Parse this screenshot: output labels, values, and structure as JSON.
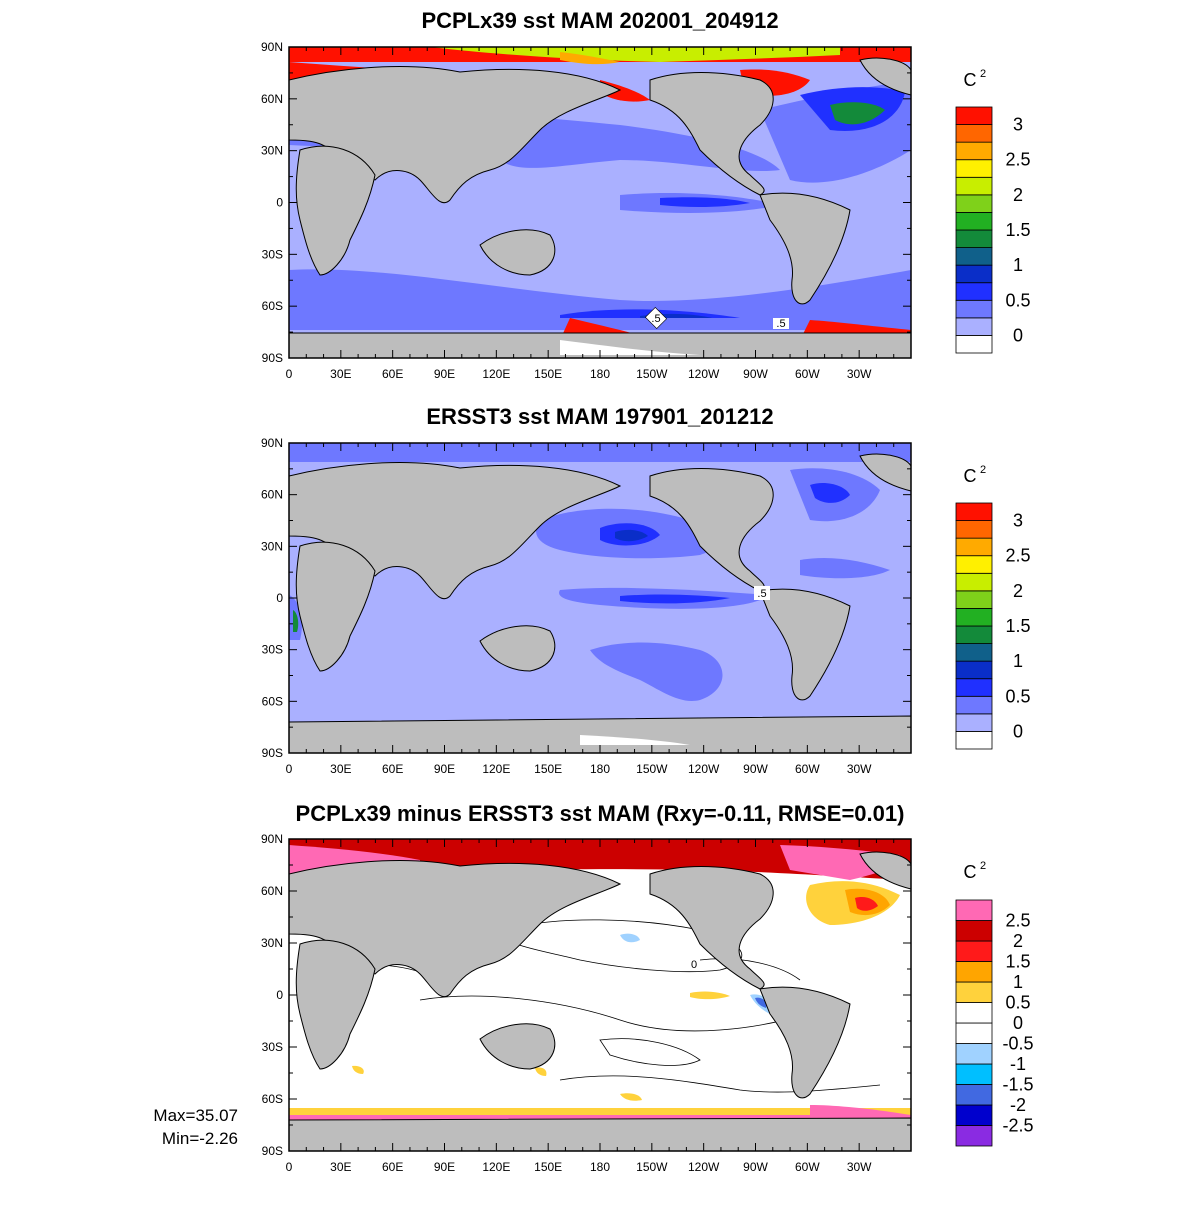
{
  "panels": [
    {
      "title": "PCPLx39 sst MAM 202001_204912",
      "lat_labels": [
        "90N",
        "60N",
        "30N",
        "0",
        "30S",
        "60S",
        "90S"
      ],
      "lon_labels": [
        "0",
        "30E",
        "60E",
        "90E",
        "120E",
        "150E",
        "180",
        "150W",
        "120W",
        "90W",
        "60W",
        "30W"
      ],
      "colorbar": {
        "unit": "C",
        "unit_sup": "2",
        "colors": [
          "#ffffff",
          "#aab0ff",
          "#6e78ff",
          "#2030ff",
          "#0a2ec8",
          "#10608a",
          "#138a3a",
          "#22b022",
          "#7fd11a",
          "#c8ee00",
          "#fff000",
          "#ffaa00",
          "#ff6600",
          "#ff1100"
        ],
        "labels": [
          "0",
          "0.5",
          "1",
          "1.5",
          "2",
          "2.5",
          "3"
        ]
      },
      "contour_labels": [
        ".5",
        ".5"
      ]
    },
    {
      "title": "ERSST3 sst MAM 197901_201212",
      "lat_labels": [
        "90N",
        "60N",
        "30N",
        "0",
        "30S",
        "60S",
        "90S"
      ],
      "lon_labels": [
        "0",
        "30E",
        "60E",
        "90E",
        "120E",
        "150E",
        "180",
        "150W",
        "120W",
        "90W",
        "60W",
        "30W"
      ],
      "colorbar": {
        "unit": "C",
        "unit_sup": "2",
        "colors": [
          "#ffffff",
          "#aab0ff",
          "#6e78ff",
          "#2030ff",
          "#0a2ec8",
          "#10608a",
          "#138a3a",
          "#22b022",
          "#7fd11a",
          "#c8ee00",
          "#fff000",
          "#ffaa00",
          "#ff6600",
          "#ff1100"
        ],
        "labels": [
          "0",
          "0.5",
          "1",
          "1.5",
          "2",
          "2.5",
          "3"
        ]
      },
      "contour_labels": [
        ".5"
      ]
    },
    {
      "title": "PCPLx39 minus ERSST3 sst MAM (Rxy=-0.11, RMSE=0.01)",
      "lat_labels": [
        "90N",
        "60N",
        "30N",
        "0",
        "30S",
        "60S",
        "90S"
      ],
      "lon_labels": [
        "0",
        "30E",
        "60E",
        "90E",
        "120E",
        "150E",
        "180",
        "150W",
        "120W",
        "90W",
        "60W",
        "30W"
      ],
      "colorbar": {
        "unit": "C",
        "unit_sup": "2",
        "colors": [
          "#8a2be2",
          "#0000cd",
          "#4169e1",
          "#00bfff",
          "#a0d2ff",
          "#ffffff",
          "#ffffff",
          "#ffd23c",
          "#ffa500",
          "#ff1a1a",
          "#cc0000",
          "#ff69b4"
        ],
        "labels": [
          "-2.5",
          "-2",
          "-1.5",
          "-1",
          "-0.5",
          "0",
          "0.5",
          "1",
          "1.5",
          "2",
          "2.5"
        ]
      },
      "contour_labels": [
        "0"
      ]
    }
  ],
  "stats": {
    "max": "Max=35.07",
    "min": "Min=-2.26"
  }
}
